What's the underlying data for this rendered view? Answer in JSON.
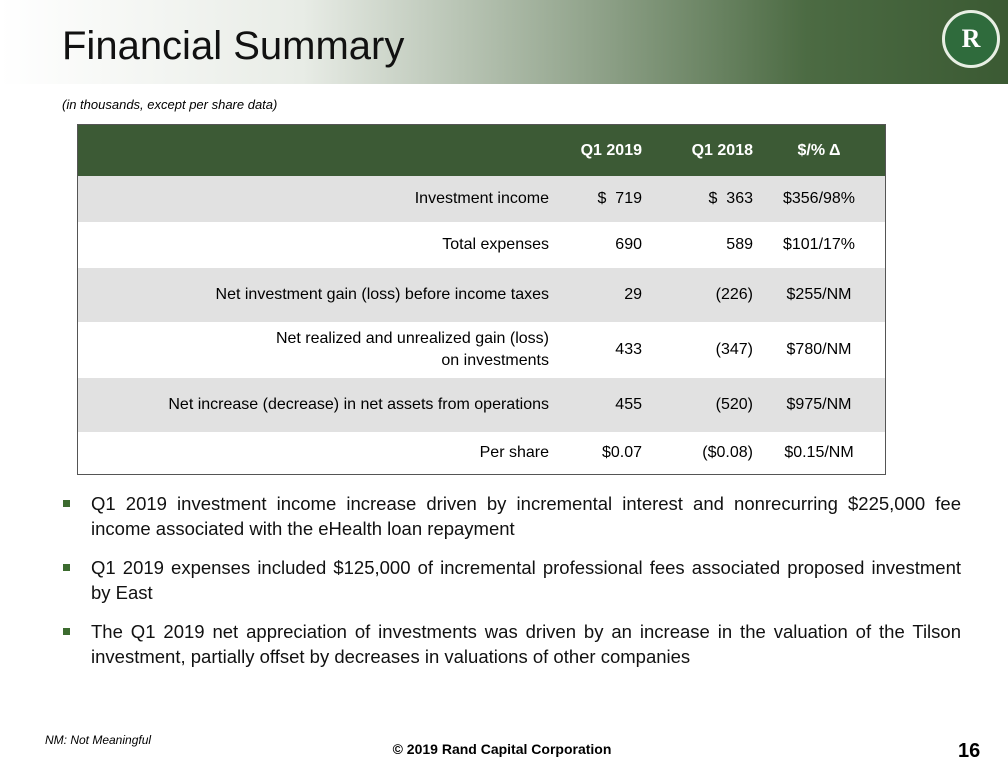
{
  "header": {
    "title": "Financial Summary",
    "logo_letter": "R"
  },
  "subtitle": "(in thousands, except per share data)",
  "table": {
    "columns": [
      "",
      "Q1 2019",
      "Q1 2018",
      "$/% Δ"
    ],
    "rows": [
      [
        "Investment income",
        "$  719",
        "$  363",
        "$356/98%"
      ],
      [
        "Total expenses",
        "690",
        "589",
        "$101/17%"
      ],
      [
        "Net investment gain (loss) before income taxes",
        "29",
        "(226)",
        "$255/NM"
      ],
      [
        "Net realized and unrealized gain (loss)\non investments",
        "433",
        "(347)",
        "$780/NM"
      ],
      [
        "Net increase (decrease) in net assets from operations",
        "455",
        "(520)",
        "$975/NM"
      ],
      [
        "Per share",
        "$0.07",
        "($0.08)",
        "$0.15/NM"
      ]
    ]
  },
  "bullets": [
    "Q1 2019 investment income increase driven by incremental interest and nonrecurring $225,000 fee income associated with the eHealth loan repayment",
    "Q1 2019 expenses included $125,000 of incremental professional fees associated proposed investment by East",
    "The Q1 2019 net appreciation of investments was driven by an increase in the valuation of the Tilson investment, partially offset by decreases in valuations of other companies"
  ],
  "footnote": "NM: Not Meaningful",
  "footer": "© 2019 Rand Capital Corporation",
  "page_number": "16"
}
